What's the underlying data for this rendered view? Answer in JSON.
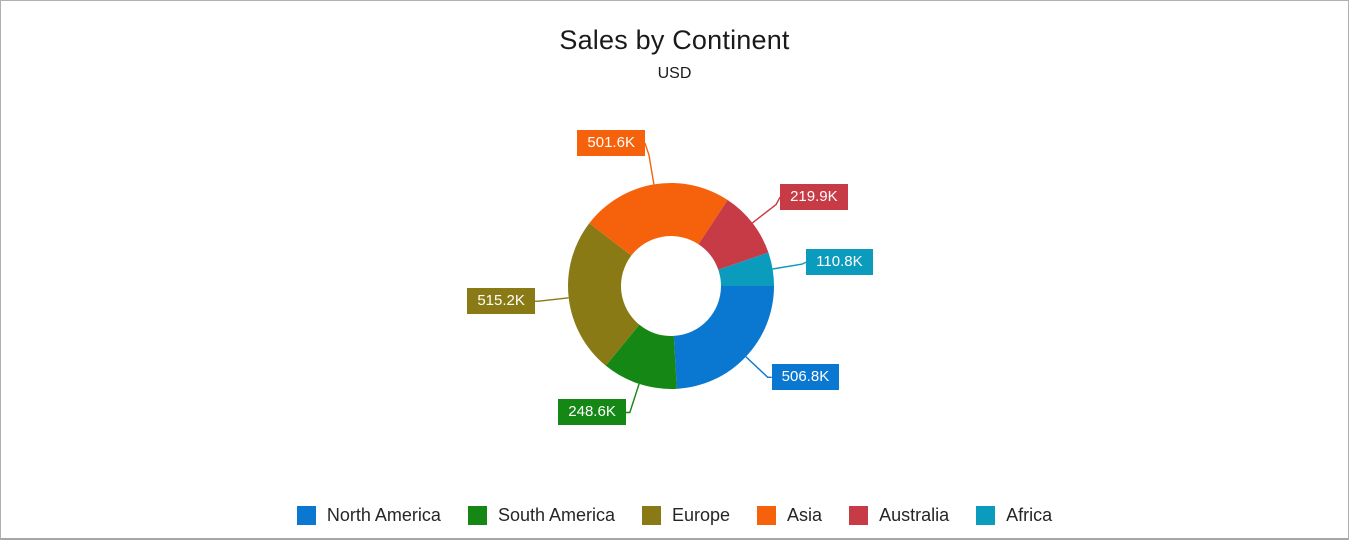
{
  "chart_data": {
    "type": "pie",
    "donut": true,
    "title": "Sales by Continent",
    "subtitle": "USD",
    "unit": "USD",
    "values_in": "thousands",
    "legend_position": "bottom",
    "inner_radius_ratio": 0.485,
    "start_angle_deg_from_east_clockwise": 0,
    "points": [
      {
        "name": "North America",
        "value": 506.8,
        "label": "506.8K",
        "color": "#0a78d1"
      },
      {
        "name": "South America",
        "value": 248.6,
        "label": "248.6K",
        "color": "#158715"
      },
      {
        "name": "Europe",
        "value": 515.2,
        "label": "515.2K",
        "color": "#8a7a15"
      },
      {
        "name": "Asia",
        "value": 501.6,
        "label": "501.6K",
        "color": "#f6610c"
      },
      {
        "name": "Australia",
        "value": 219.9,
        "label": "219.9K",
        "color": "#c63b46"
      },
      {
        "name": "Africa",
        "value": 110.8,
        "label": "110.8K",
        "color": "#0b9bbd"
      }
    ]
  }
}
